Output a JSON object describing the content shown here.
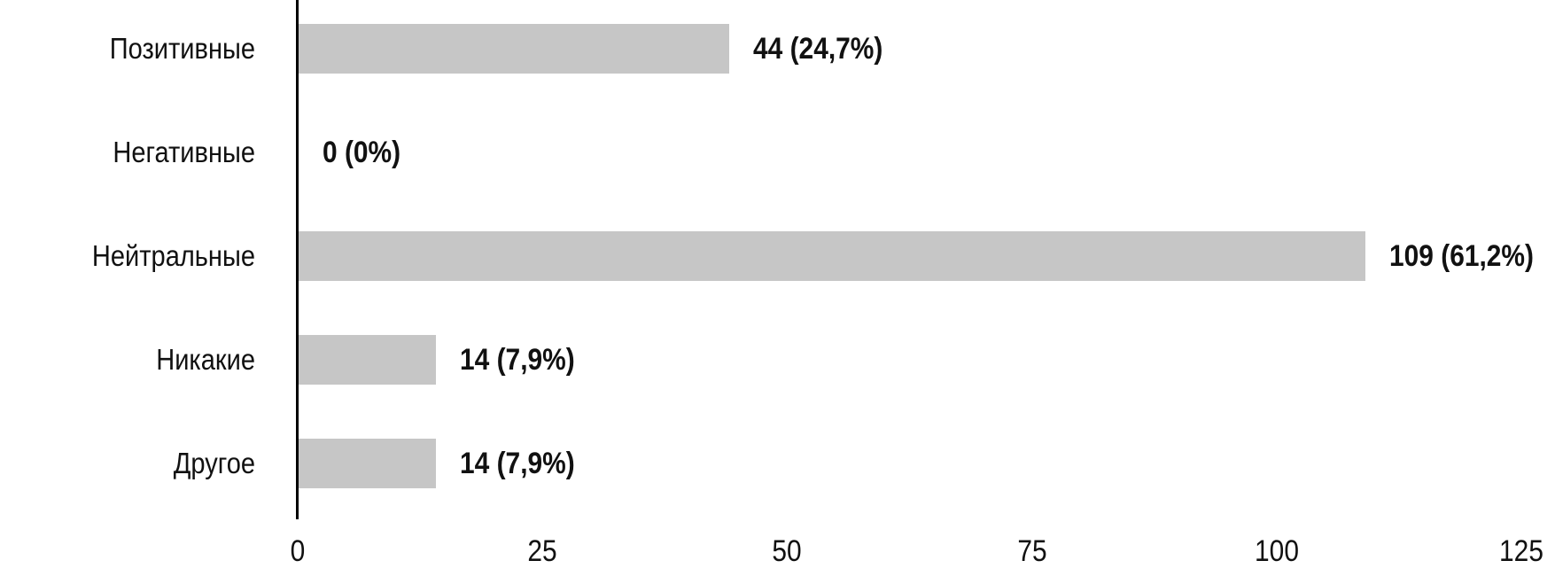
{
  "chart_data": {
    "type": "bar",
    "orientation": "horizontal",
    "title": "",
    "categories": [
      "Позитивные",
      "Негативные",
      "Нейтральные",
      "Никакие",
      "Другое"
    ],
    "values": [
      44,
      0,
      109,
      14,
      14
    ],
    "bar_labels": [
      "44 (24,7%)",
      "0 (0%)",
      "109 (61,2%)",
      "14 (7,9%)",
      "14 (7,9%)"
    ],
    "percentages": [
      24.7,
      0,
      61.2,
      7.9,
      7.9
    ],
    "x_ticks": [
      "0",
      "25",
      "50",
      "75",
      "100",
      "125"
    ],
    "x_tick_values": [
      0,
      25,
      50,
      75,
      100,
      125
    ],
    "xlim": [
      0,
      125
    ],
    "xlabel": "",
    "ylabel": "",
    "grid": false,
    "legend_position": "none",
    "colors": {
      "bar": "#c6c6c6",
      "text": "#111111",
      "axis": "#000000",
      "background": "#ffffff"
    }
  }
}
